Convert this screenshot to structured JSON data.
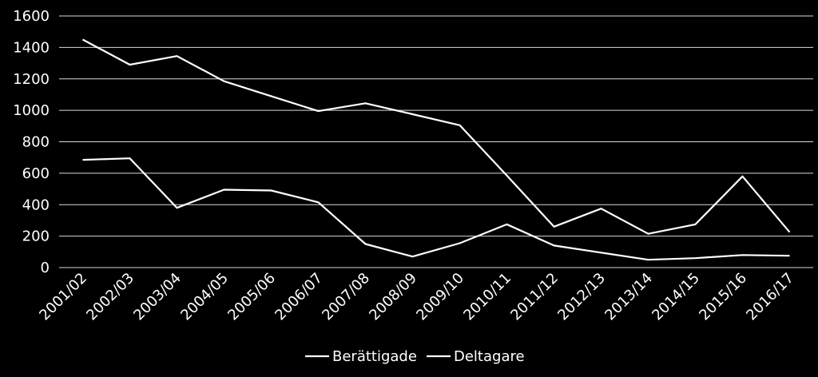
{
  "colors": {
    "background": "#000000",
    "gridline": "#ffffff",
    "text": "#ffffff"
  },
  "chart_data": {
    "type": "line",
    "title": "",
    "xlabel": "",
    "ylabel": "",
    "categories": [
      "2001/02",
      "2002/03",
      "2003/04",
      "2004/05",
      "2005/06",
      "2006/07",
      "2007/08",
      "2008/09",
      "2009/10",
      "2010/11",
      "2011/12",
      "2012/13",
      "2013/14",
      "2014/15",
      "2015/16",
      "2016/17"
    ],
    "ylim": [
      0,
      1600
    ],
    "yticks": [
      0,
      200,
      400,
      600,
      800,
      1000,
      1200,
      1400,
      1600
    ],
    "grid": "horizontal",
    "legend_position": "bottom",
    "series": [
      {
        "name": "Berättigade",
        "color": "#ffffff",
        "values": [
          1450,
          1290,
          1345,
          1185,
          1090,
          995,
          1045,
          975,
          905,
          585,
          260,
          375,
          215,
          275,
          580,
          225
        ]
      },
      {
        "name": "Deltagare",
        "color": "#ffffff",
        "values": [
          685,
          695,
          380,
          495,
          490,
          415,
          150,
          70,
          155,
          275,
          140,
          95,
          50,
          60,
          80,
          75
        ]
      }
    ]
  }
}
